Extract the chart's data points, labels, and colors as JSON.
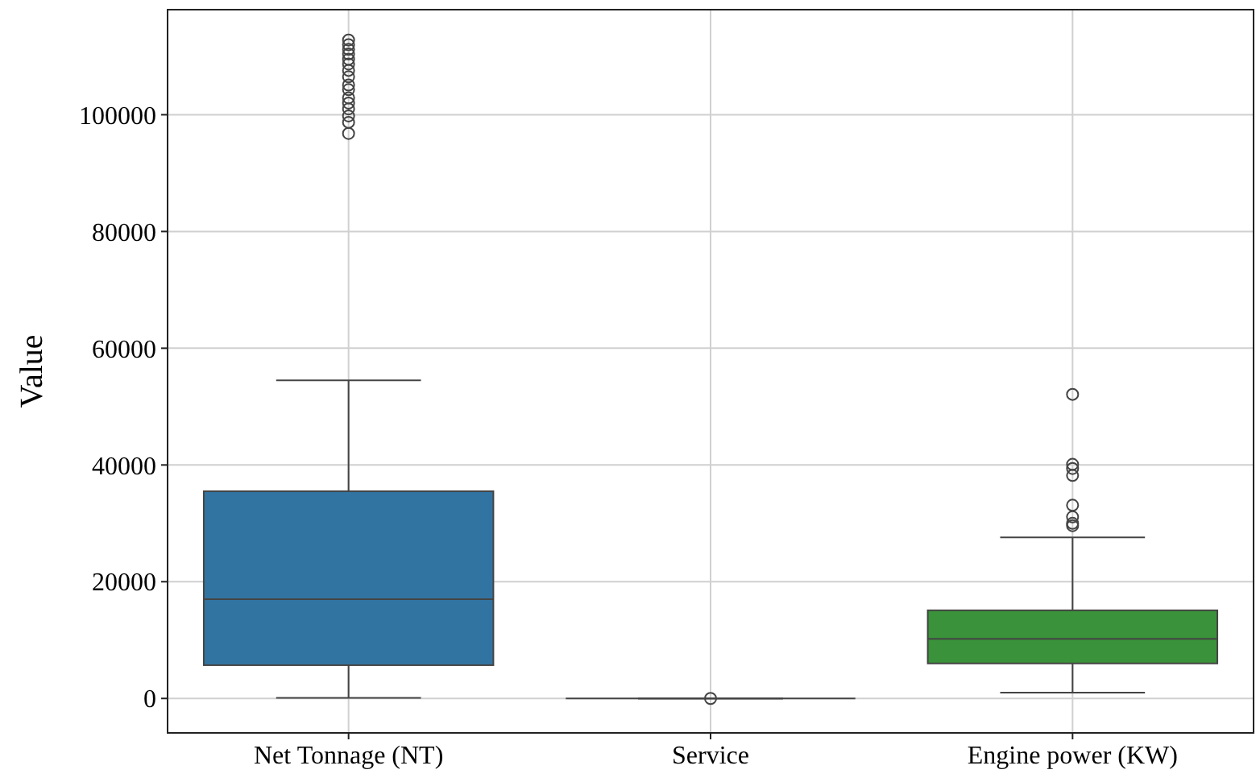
{
  "chart_data": {
    "type": "box",
    "ylabel": "Value",
    "categories": [
      "Net Tonnage (NT)",
      "Service",
      "Engine power (KW)"
    ],
    "boxes": [
      {
        "low": 100,
        "q1": 5700,
        "median": 17000,
        "q3": 35500,
        "high": 54500,
        "outliers": [
          112800,
          112000,
          111200,
          110400,
          109500,
          108700,
          107600,
          106500,
          105100,
          104300,
          102900,
          102000,
          101000,
          99800,
          98700,
          96800
        ]
      },
      {
        "low": 0,
        "q1": 0,
        "median": 0,
        "q3": 0,
        "high": 0,
        "outliers": [
          0
        ]
      },
      {
        "low": 1000,
        "q1": 6000,
        "median": 10200,
        "q3": 15100,
        "high": 27600,
        "outliers": [
          52100,
          40100,
          39400,
          38200,
          33100,
          31100,
          30000,
          29600
        ]
      }
    ],
    "colors": [
      "#3274a1",
      null,
      "#3a923a"
    ],
    "ylim": [
      -5900,
      118000
    ],
    "yticks": [
      0,
      20000,
      40000,
      60000,
      80000,
      100000
    ],
    "grid": true
  }
}
